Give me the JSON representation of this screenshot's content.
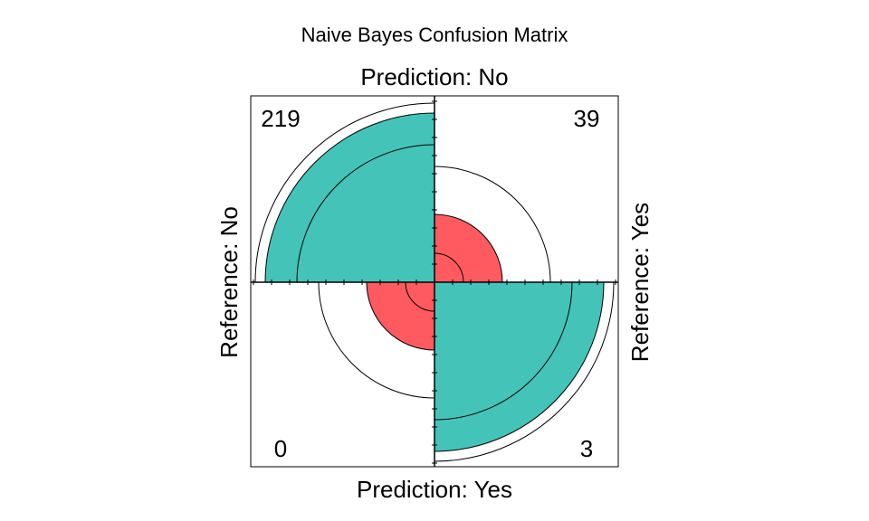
{
  "chart_data": {
    "type": "fourfold",
    "title": "Naive Bayes Confusion Matrix",
    "top_label": "Prediction: No",
    "bottom_label": "Prediction: Yes",
    "left_label": "Reference: No",
    "right_label": "Reference: Yes",
    "cells": [
      {
        "quadrant": "top-left",
        "prediction": "No",
        "reference": "No",
        "count": 219,
        "label": "219",
        "color": "#44c4b8"
      },
      {
        "quadrant": "top-right",
        "prediction": "No",
        "reference": "Yes",
        "count": 39,
        "label": "39",
        "color": "#ff5a5f"
      },
      {
        "quadrant": "bottom-left",
        "prediction": "Yes",
        "reference": "No",
        "count": 0,
        "label": "0",
        "color": "#ff5a5f"
      },
      {
        "quadrant": "bottom-right",
        "prediction": "Yes",
        "reference": "Yes",
        "count": 3,
        "label": "3",
        "color": "#44c4b8"
      }
    ],
    "standardized_radius": [
      0.935,
      0.375,
      0.375,
      0.935
    ],
    "confidence_rings": {
      "inner": [
        0.76,
        0.16,
        0.16,
        0.76
      ],
      "outer": [
        0.99,
        0.64,
        0.64,
        0.99
      ]
    }
  }
}
